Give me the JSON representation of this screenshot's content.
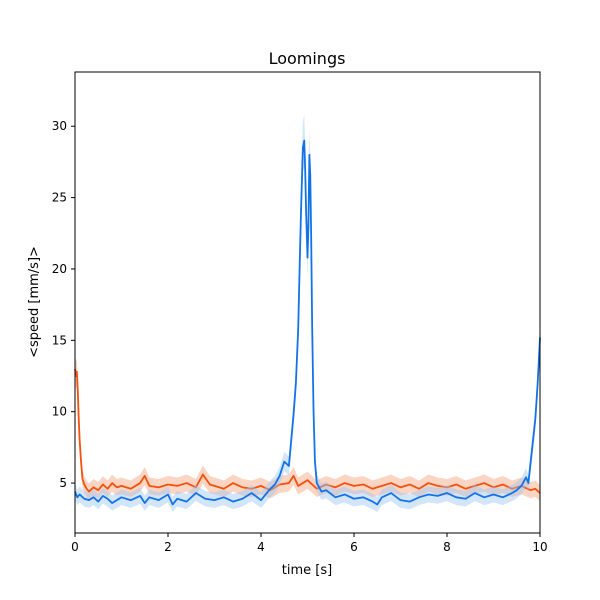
{
  "chart_data": {
    "type": "line",
    "title": "Loomings",
    "xlabel": "time [s]",
    "ylabel": "<speed [mm/s]>",
    "xlim": [
      0,
      10
    ],
    "ylim": [
      1.5,
      33.8
    ],
    "x_ticks": [
      0,
      2,
      4,
      6,
      8,
      10
    ],
    "y_ticks": [
      5,
      10,
      15,
      20,
      25,
      30
    ],
    "grid": false,
    "legend": "none",
    "series": [
      {
        "color": "#f4510b",
        "band_color": "#f4a27a",
        "points": [
          [
            0.0,
            13.0
          ],
          [
            0.02,
            12.5
          ],
          [
            0.04,
            12.8
          ],
          [
            0.06,
            11.5
          ],
          [
            0.08,
            9.5
          ],
          [
            0.1,
            8.0
          ],
          [
            0.13,
            6.5
          ],
          [
            0.16,
            5.3
          ],
          [
            0.2,
            4.9
          ],
          [
            0.25,
            4.6
          ],
          [
            0.3,
            4.4
          ],
          [
            0.4,
            4.7
          ],
          [
            0.5,
            4.5
          ],
          [
            0.6,
            4.9
          ],
          [
            0.7,
            4.6
          ],
          [
            0.8,
            5.0
          ],
          [
            0.9,
            4.7
          ],
          [
            1.0,
            4.8
          ],
          [
            1.2,
            4.6
          ],
          [
            1.4,
            5.0
          ],
          [
            1.5,
            5.5
          ],
          [
            1.6,
            4.8
          ],
          [
            1.8,
            4.7
          ],
          [
            2.0,
            4.9
          ],
          [
            2.2,
            4.8
          ],
          [
            2.4,
            5.0
          ],
          [
            2.6,
            4.7
          ],
          [
            2.75,
            5.6
          ],
          [
            2.9,
            4.9
          ],
          [
            3.0,
            4.8
          ],
          [
            3.2,
            4.6
          ],
          [
            3.4,
            5.0
          ],
          [
            3.6,
            4.7
          ],
          [
            3.8,
            4.6
          ],
          [
            4.0,
            4.8
          ],
          [
            4.2,
            4.5
          ],
          [
            4.4,
            4.9
          ],
          [
            4.6,
            5.0
          ],
          [
            4.7,
            5.5
          ],
          [
            4.8,
            4.8
          ],
          [
            5.0,
            5.2
          ],
          [
            5.2,
            4.6
          ],
          [
            5.4,
            4.9
          ],
          [
            5.6,
            4.7
          ],
          [
            5.8,
            5.0
          ],
          [
            6.0,
            4.8
          ],
          [
            6.2,
            4.9
          ],
          [
            6.4,
            4.6
          ],
          [
            6.6,
            4.8
          ],
          [
            6.8,
            5.0
          ],
          [
            7.0,
            4.7
          ],
          [
            7.2,
            4.9
          ],
          [
            7.4,
            4.6
          ],
          [
            7.6,
            5.0
          ],
          [
            7.8,
            4.8
          ],
          [
            8.0,
            4.7
          ],
          [
            8.2,
            4.9
          ],
          [
            8.4,
            4.6
          ],
          [
            8.6,
            4.8
          ],
          [
            8.8,
            5.0
          ],
          [
            9.0,
            4.7
          ],
          [
            9.2,
            4.9
          ],
          [
            9.4,
            4.6
          ],
          [
            9.6,
            4.8
          ],
          [
            9.8,
            4.5
          ],
          [
            9.9,
            4.6
          ],
          [
            10.0,
            4.3
          ]
        ]
      },
      {
        "color": "#1273e6",
        "band_color": "#9ec5f2",
        "points": [
          [
            0.0,
            4.4
          ],
          [
            0.05,
            4.0
          ],
          [
            0.1,
            4.2
          ],
          [
            0.2,
            3.9
          ],
          [
            0.3,
            3.8
          ],
          [
            0.4,
            4.0
          ],
          [
            0.5,
            3.7
          ],
          [
            0.6,
            4.1
          ],
          [
            0.7,
            3.9
          ],
          [
            0.8,
            3.6
          ],
          [
            1.0,
            4.0
          ],
          [
            1.2,
            3.8
          ],
          [
            1.4,
            4.1
          ],
          [
            1.5,
            3.6
          ],
          [
            1.6,
            4.0
          ],
          [
            1.8,
            3.8
          ],
          [
            2.0,
            4.2
          ],
          [
            2.1,
            3.5
          ],
          [
            2.2,
            3.9
          ],
          [
            2.4,
            3.7
          ],
          [
            2.6,
            4.3
          ],
          [
            2.8,
            3.9
          ],
          [
            3.0,
            3.8
          ],
          [
            3.2,
            4.0
          ],
          [
            3.4,
            3.7
          ],
          [
            3.6,
            3.9
          ],
          [
            3.8,
            4.3
          ],
          [
            4.0,
            3.8
          ],
          [
            4.1,
            4.2
          ],
          [
            4.2,
            4.6
          ],
          [
            4.3,
            4.9
          ],
          [
            4.4,
            5.5
          ],
          [
            4.5,
            6.5
          ],
          [
            4.6,
            6.2
          ],
          [
            4.65,
            8.0
          ],
          [
            4.7,
            9.8
          ],
          [
            4.75,
            12.0
          ],
          [
            4.8,
            15.8
          ],
          [
            4.83,
            20.0
          ],
          [
            4.86,
            24.0
          ],
          [
            4.9,
            28.5
          ],
          [
            4.93,
            29.0
          ],
          [
            4.95,
            27.0
          ],
          [
            4.97,
            24.0
          ],
          [
            5.0,
            20.8
          ],
          [
            5.02,
            23.0
          ],
          [
            5.04,
            28.0
          ],
          [
            5.06,
            26.5
          ],
          [
            5.08,
            22.0
          ],
          [
            5.1,
            16.0
          ],
          [
            5.13,
            10.0
          ],
          [
            5.16,
            6.5
          ],
          [
            5.2,
            5.0
          ],
          [
            5.3,
            4.4
          ],
          [
            5.4,
            4.5
          ],
          [
            5.6,
            4.0
          ],
          [
            5.8,
            4.2
          ],
          [
            6.0,
            3.9
          ],
          [
            6.2,
            4.0
          ],
          [
            6.4,
            3.7
          ],
          [
            6.5,
            3.5
          ],
          [
            6.6,
            4.0
          ],
          [
            6.8,
            4.3
          ],
          [
            7.0,
            3.8
          ],
          [
            7.2,
            3.7
          ],
          [
            7.4,
            4.0
          ],
          [
            7.6,
            4.2
          ],
          [
            7.8,
            4.1
          ],
          [
            8.0,
            4.3
          ],
          [
            8.2,
            4.0
          ],
          [
            8.4,
            3.9
          ],
          [
            8.6,
            4.3
          ],
          [
            8.8,
            4.0
          ],
          [
            9.0,
            4.2
          ],
          [
            9.2,
            4.0
          ],
          [
            9.4,
            4.3
          ],
          [
            9.5,
            4.5
          ],
          [
            9.6,
            4.8
          ],
          [
            9.7,
            5.4
          ],
          [
            9.75,
            5.0
          ],
          [
            9.8,
            6.5
          ],
          [
            9.85,
            8.0
          ],
          [
            9.9,
            9.5
          ],
          [
            9.95,
            12.0
          ],
          [
            10.0,
            15.2
          ]
        ]
      }
    ]
  }
}
